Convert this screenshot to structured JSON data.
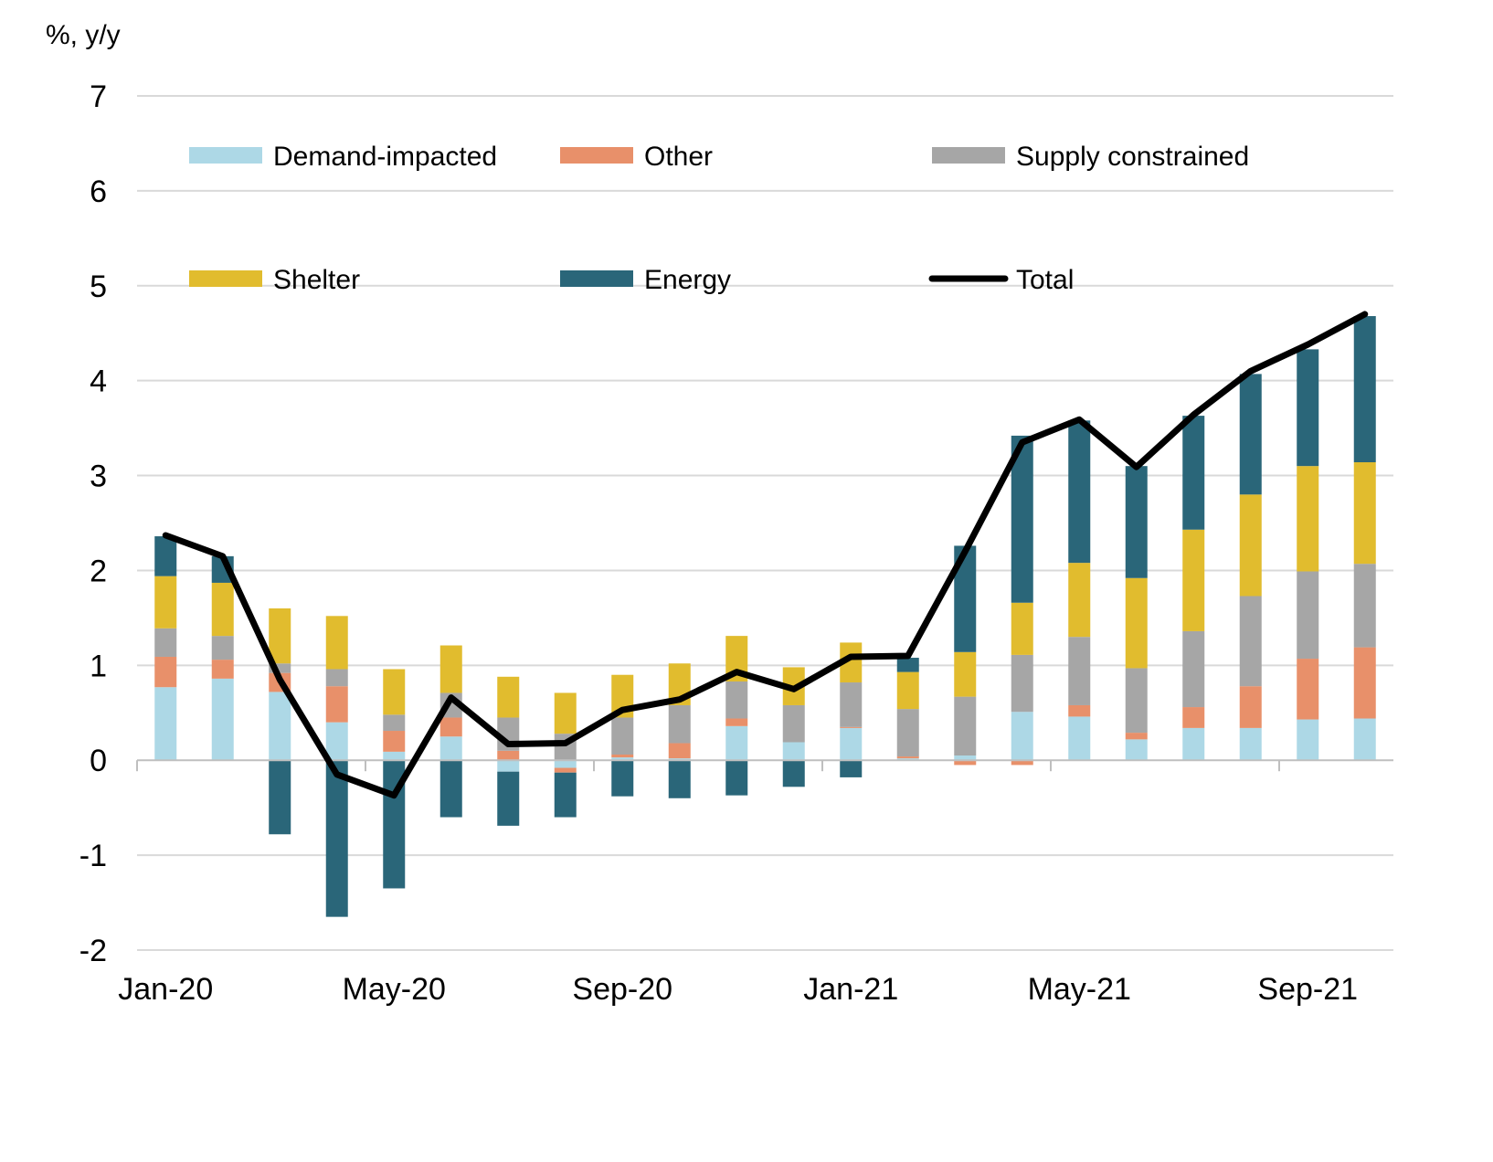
{
  "chart_data": {
    "type": "bar",
    "stacked": true,
    "unit_label": "%, y/y",
    "ylim": [
      -2,
      7
    ],
    "yticks": [
      -2,
      -1,
      0,
      1,
      2,
      3,
      4,
      5,
      6,
      7
    ],
    "grid": true,
    "legend_position": "top",
    "x_tick_labels": [
      "Jan-20",
      "",
      "",
      "",
      "May-20",
      "",
      "",
      "",
      "Sep-20",
      "",
      "",
      "",
      "Jan-21",
      "",
      "",
      "",
      "May-21",
      "",
      "",
      "",
      "Sep-21",
      ""
    ],
    "categories": [
      "Jan-20",
      "Feb-20",
      "Mar-20",
      "Apr-20",
      "May-20",
      "Jun-20",
      "Jul-20",
      "Aug-20",
      "Sep-20",
      "Oct-20",
      "Nov-20",
      "Dec-20",
      "Jan-21",
      "Feb-21",
      "Mar-21",
      "Apr-21",
      "May-21",
      "Jun-21",
      "Jul-21",
      "Aug-21",
      "Sep-21",
      "Oct-21"
    ],
    "series": [
      {
        "name": "Demand-impacted",
        "color": "#ADD8E6",
        "values": [
          0.77,
          0.86,
          0.72,
          0.4,
          0.09,
          0.25,
          -0.12,
          -0.08,
          0.03,
          0.02,
          0.36,
          0.19,
          0.34,
          0.02,
          0.05,
          0.51,
          0.46,
          0.22,
          0.34,
          0.34,
          0.43,
          0.44
        ]
      },
      {
        "name": "Other",
        "color": "#E8906A",
        "values": [
          0.32,
          0.2,
          0.2,
          0.38,
          0.22,
          0.2,
          0.1,
          -0.05,
          0.03,
          0.16,
          0.08,
          0.0,
          0.01,
          0.02,
          -0.05,
          -0.05,
          0.12,
          0.07,
          0.22,
          0.44,
          0.64,
          0.75
        ]
      },
      {
        "name": "Supply constrained",
        "color": "#A6A6A6",
        "values": [
          0.3,
          0.25,
          0.1,
          0.18,
          0.17,
          0.26,
          0.35,
          0.28,
          0.39,
          0.4,
          0.39,
          0.39,
          0.47,
          0.5,
          0.62,
          0.6,
          0.72,
          0.68,
          0.8,
          0.95,
          0.92,
          0.88
        ]
      },
      {
        "name": "Shelter",
        "color": "#E1BC2E",
        "values": [
          0.55,
          0.56,
          0.58,
          0.56,
          0.48,
          0.5,
          0.43,
          0.43,
          0.45,
          0.44,
          0.48,
          0.4,
          0.42,
          0.39,
          0.47,
          0.55,
          0.78,
          0.95,
          1.07,
          1.07,
          1.11,
          1.07
        ]
      },
      {
        "name": "Energy",
        "color": "#2A6679",
        "values": [
          0.42,
          0.28,
          -0.78,
          -1.65,
          -1.35,
          -0.6,
          -0.57,
          -0.47,
          -0.38,
          -0.4,
          -0.37,
          -0.28,
          -0.18,
          0.15,
          1.12,
          1.76,
          1.5,
          1.18,
          1.2,
          1.27,
          1.23,
          1.54
        ]
      }
    ],
    "line": {
      "name": "Total",
      "color": "#000000",
      "values": [
        2.37,
        2.15,
        0.85,
        -0.15,
        -0.37,
        0.66,
        0.17,
        0.18,
        0.53,
        0.64,
        0.93,
        0.75,
        1.09,
        1.1,
        2.2,
        3.35,
        3.59,
        3.09,
        3.64,
        4.1,
        4.38,
        4.7
      ]
    }
  }
}
